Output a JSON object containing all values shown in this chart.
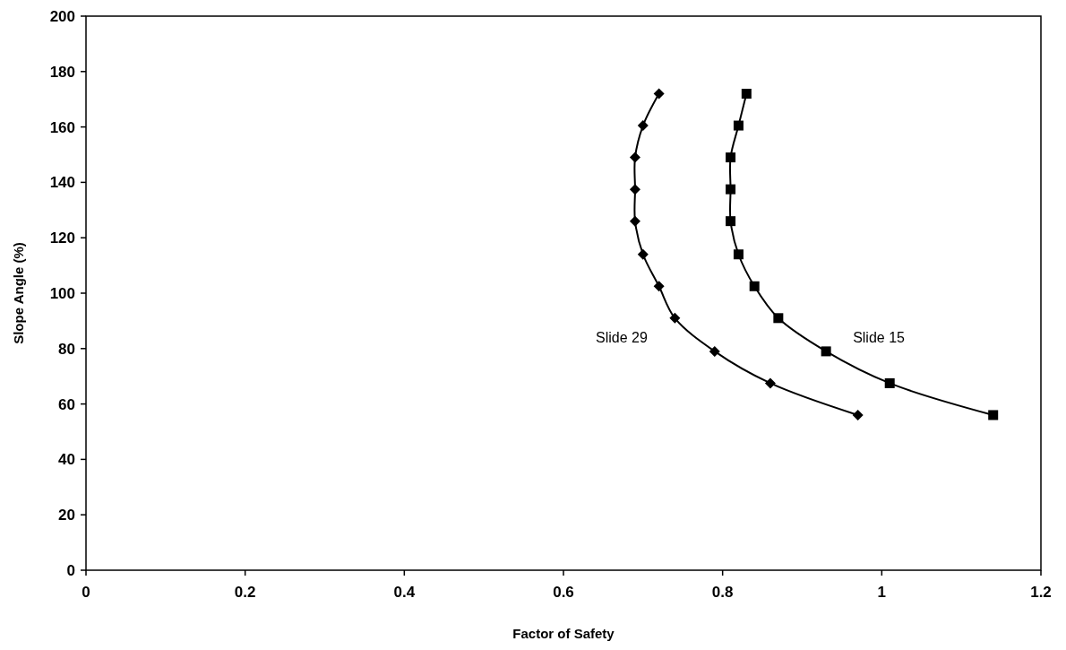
{
  "chart_data": {
    "type": "line",
    "xlabel": "Factor of Safety",
    "ylabel": "Slope Angle (%)",
    "xlim": [
      0,
      1.2
    ],
    "xticks": [
      0,
      0.2,
      0.4,
      0.6,
      0.8,
      1,
      1.2
    ],
    "ylim": [
      0,
      200
    ],
    "yticks": [
      0,
      20,
      40,
      60,
      80,
      100,
      120,
      140,
      160,
      180,
      200
    ],
    "grid": false,
    "series": [
      {
        "name": "Slide 29",
        "color": "#000000",
        "marker": "diamond",
        "x": [
          0.97,
          0.86,
          0.79,
          0.74,
          0.72,
          0.7,
          0.69,
          0.69,
          0.69,
          0.7,
          0.72
        ],
        "values": [
          56,
          67.5,
          79,
          91,
          102.5,
          114,
          126,
          137.5,
          149,
          160.5,
          172
        ]
      },
      {
        "name": "Slide 15",
        "color": "#000000",
        "marker": "square",
        "x": [
          1.14,
          1.01,
          0.93,
          0.87,
          0.84,
          0.82,
          0.81,
          0.81,
          0.81,
          0.82,
          0.83
        ],
        "values": [
          56,
          67.5,
          79,
          91,
          102.5,
          114,
          126,
          137.5,
          149,
          160.5,
          172
        ]
      }
    ]
  }
}
